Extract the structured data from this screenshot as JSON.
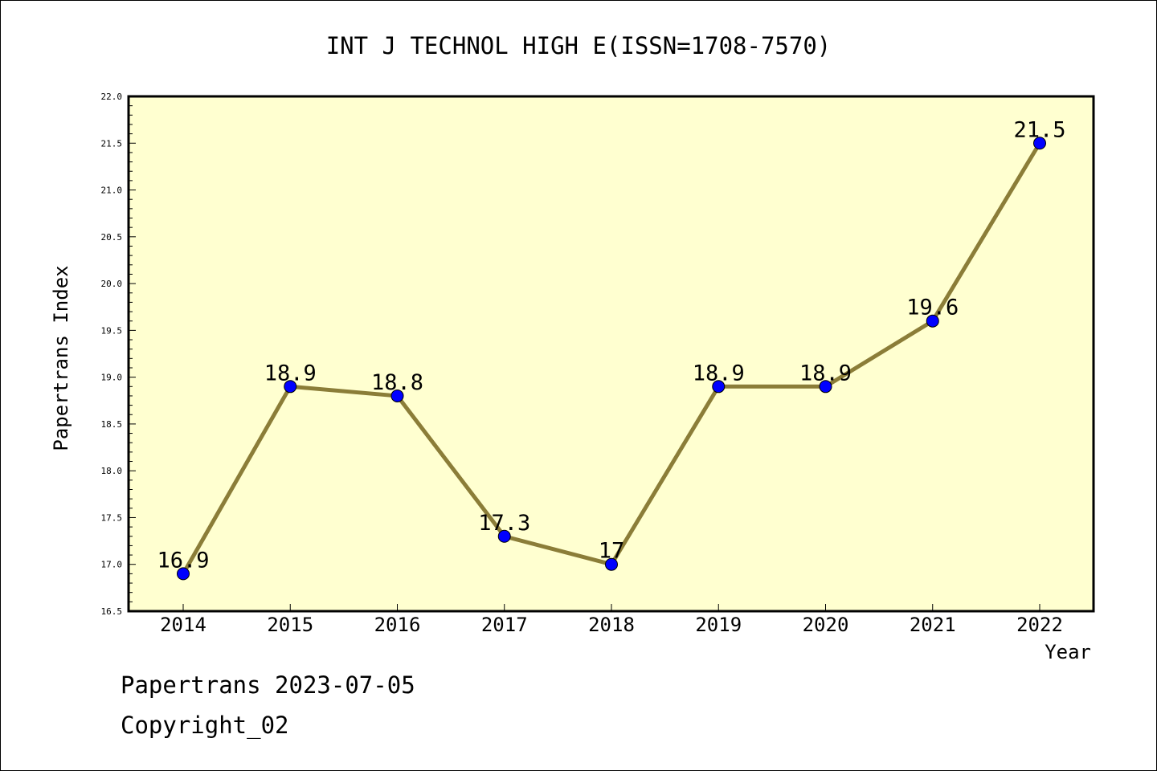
{
  "chart_data": {
    "type": "line",
    "title": "INT J TECHNOL HIGH E(ISSN=1708-7570)",
    "xlabel": "Year",
    "ylabel": "Papertrans Index",
    "categories": [
      "2014",
      "2015",
      "2016",
      "2017",
      "2018",
      "2019",
      "2020",
      "2021",
      "2022"
    ],
    "series": [
      {
        "values": [
          16.9,
          18.9,
          18.8,
          17.3,
          17.0,
          18.9,
          18.9,
          19.6,
          21.5
        ],
        "labels": [
          "16.9",
          "18.9",
          "18.8",
          "17.3",
          "17",
          "18.9",
          "18.9",
          "19.6",
          "21.5"
        ]
      }
    ],
    "ylim": [
      16.5,
      22.0
    ],
    "yticks": [
      "16.5",
      "17.0",
      "17.5",
      "18.0",
      "18.5",
      "19.0",
      "19.5",
      "20.0",
      "20.5",
      "21.0",
      "21.5",
      "22.0"
    ],
    "grid": false,
    "colors": {
      "plot_background": "#ffffd0",
      "line": "#8b7d38",
      "marker": "#0000ff"
    }
  },
  "footer": {
    "line1": "Papertrans 2023-07-05",
    "line2": "Copyright_02"
  }
}
